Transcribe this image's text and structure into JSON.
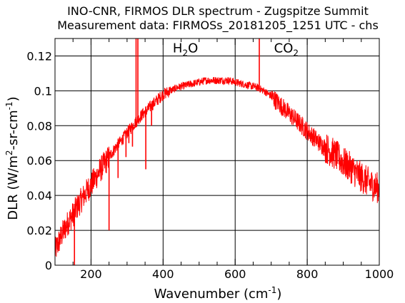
{
  "chart_data": {
    "type": "line",
    "title": "INO-CNR, FIRMOS DLR spectrum - Zugspitze Summit",
    "subtitle": "Measurement data: FIRMOSs_20181205_1251 UTC - chs",
    "xlabel": {
      "base": "Wavenumber (cm",
      "sup": "-1",
      "tail": ")"
    },
    "ylabel": {
      "p1": "DLR (W/m",
      "s1": "2",
      "p2": "-sr-cm",
      "s2": "-1",
      "p3": ")"
    },
    "xlim": [
      100,
      1000
    ],
    "ylim": [
      0,
      0.13
    ],
    "x_ticks": [
      200,
      400,
      600,
      800,
      1000
    ],
    "x_tick_labels": [
      "200",
      "400",
      "600",
      "800",
      "1000"
    ],
    "y_ticks": [
      0,
      0.02,
      0.04,
      0.06,
      0.08,
      0.1,
      0.12
    ],
    "y_tick_labels": [
      "0",
      "0.02",
      "0.04",
      "0.06",
      "0.08",
      "0.1",
      "0.12"
    ],
    "grid": true,
    "annotations": [
      {
        "id": "h2o",
        "base": "H",
        "sub": "2",
        "tail": "O",
        "x": 462,
        "y": 0.122
      },
      {
        "id": "co2",
        "base": "CO",
        "sub": "2",
        "tail": "",
        "x": 742,
        "y": 0.122
      }
    ],
    "series": [
      {
        "color": "#ff0000",
        "x": [
          100,
          110,
          120,
          130,
          140,
          150,
          160,
          175,
          190,
          200,
          215,
          230,
          250,
          270,
          290,
          300,
          320,
          340,
          360,
          380,
          400,
          420,
          440,
          460,
          480,
          500,
          520,
          540,
          560,
          580,
          600,
          620,
          640,
          660,
          680,
          700,
          720,
          740,
          760,
          780,
          800,
          820,
          840,
          860,
          880,
          900,
          920,
          940,
          960,
          980,
          1000
        ],
        "y": [
          0.008,
          0.013,
          0.018,
          0.022,
          0.026,
          0.029,
          0.033,
          0.038,
          0.043,
          0.046,
          0.051,
          0.056,
          0.062,
          0.068,
          0.073,
          0.076,
          0.081,
          0.086,
          0.09,
          0.094,
          0.098,
          0.1,
          0.102,
          0.103,
          0.104,
          0.105,
          0.106,
          0.106,
          0.106,
          0.106,
          0.105,
          0.104,
          0.103,
          0.102,
          0.1,
          0.097,
          0.093,
          0.089,
          0.085,
          0.081,
          0.077,
          0.073,
          0.069,
          0.066,
          0.063,
          0.059,
          0.056,
          0.052,
          0.049,
          0.046,
          0.044
        ],
        "spikes": [
          {
            "x": 154,
            "y": 0.0
          },
          {
            "x": 250,
            "y": 0.02
          },
          {
            "x": 275,
            "y": 0.05
          },
          {
            "x": 297,
            "y": 0.062
          },
          {
            "x": 305,
            "y": 0.07
          },
          {
            "x": 315,
            "y": 0.068
          },
          {
            "x": 325,
            "y": 0.135
          },
          {
            "x": 330,
            "y": 0.135
          },
          {
            "x": 352,
            "y": 0.055
          },
          {
            "x": 368,
            "y": 0.08
          },
          {
            "x": 667,
            "y": 0.135
          }
        ]
      }
    ]
  }
}
